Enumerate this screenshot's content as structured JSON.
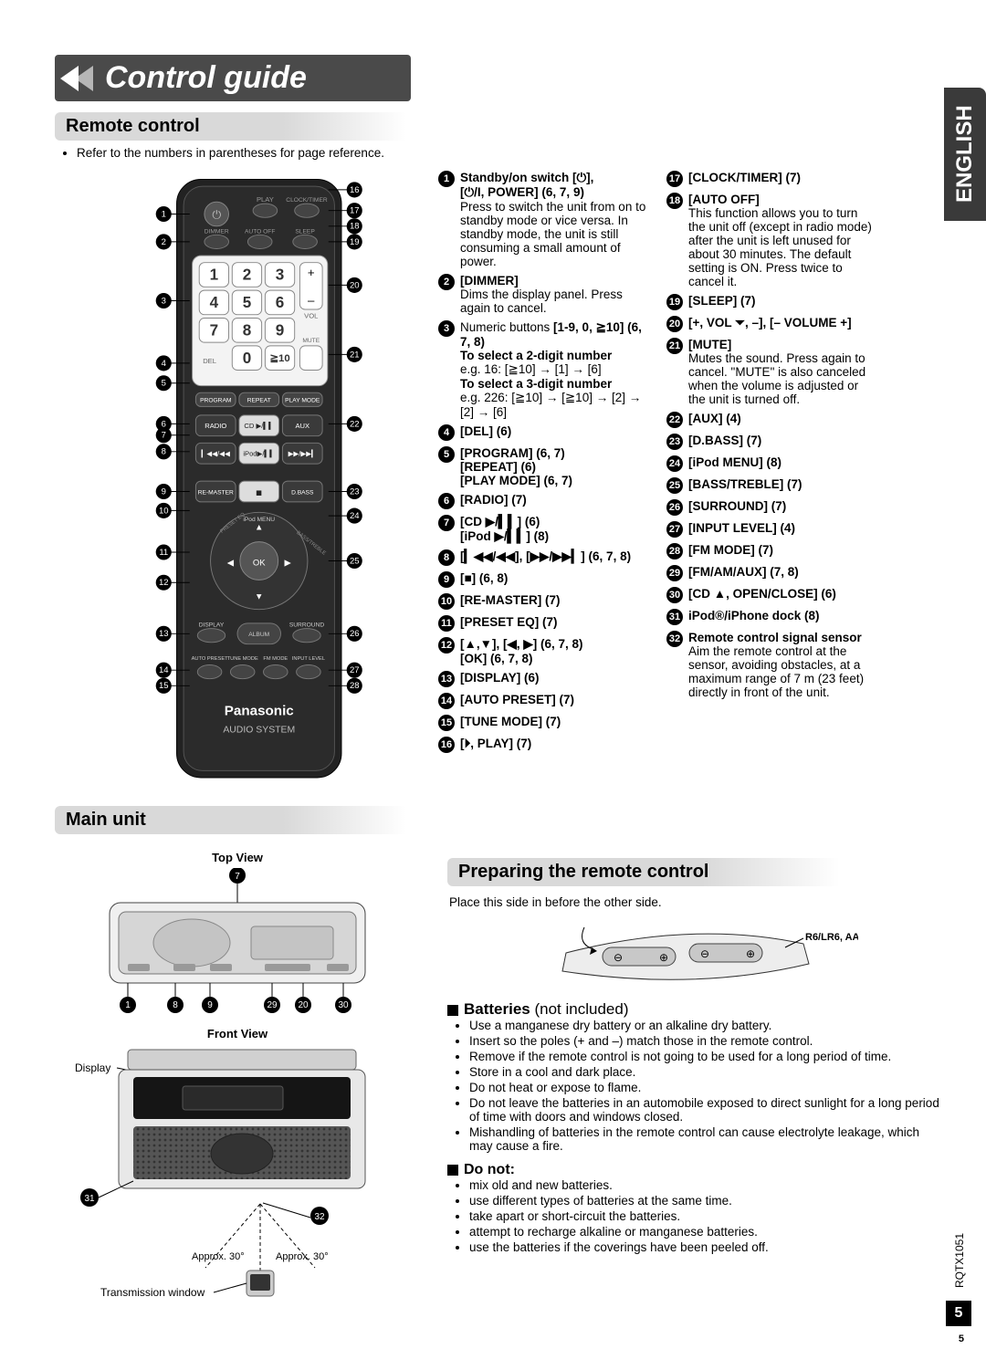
{
  "language_tab": "ENGLISH",
  "page_code": "RQTX1051",
  "page_number": "5",
  "title": "Control guide",
  "sections": {
    "remote": {
      "header": "Remote control",
      "intro": "Refer to the numbers in parentheses for page reference."
    },
    "main_unit": {
      "header": "Main unit"
    },
    "prep": {
      "header": "Preparing the remote control",
      "place": "Place this side in before the other side.",
      "battery_label": "R6/LR6, AA"
    }
  },
  "remote_image": {
    "brand": "Panasonic",
    "subtitle": "AUDIO SYSTEM",
    "face_labels": {
      "play": "PLAY",
      "clocktimer": "CLOCK/TIMER",
      "dimmer": "DIMMER",
      "autooff": "AUTO OFF",
      "sleep": "SLEEP",
      "vol": "VOL",
      "mute": "MUTE",
      "del": "DEL",
      "ge10": "≧10",
      "program": "PROGRAM",
      "repeat": "REPEAT",
      "playmode": "PLAY MODE",
      "radio": "RADIO",
      "cd": "CD ▶/▍▍",
      "aux": "AUX",
      "skipb": "▎◀◀/◀◀",
      "ipod": "iPod▶/▍▍",
      "skipf": "▶▶/▶▶▎",
      "remaster": "RE-MASTER",
      "stop": "■",
      "dbass": "D.BASS",
      "ipodmenu": "iPod MENU",
      "ok": "OK",
      "display": "DISPLAY",
      "album": "ALBUM",
      "surround": "SURROUND",
      "autopreset": "AUTO\nPRESET",
      "tunemode": "TUNE\nMODE",
      "fmmode": "FM\nMODE",
      "inputlevel": "INPUT\nLEVEL",
      "preseteq": "PRESET EQ",
      "basstreble": "BASS/TREBLE"
    }
  },
  "items_mid": [
    {
      "n": "1",
      "bold": "Standby/on switch [⏻],\n[⏻/I, POWER] (6, 7, 9)",
      "text": "Press to switch the unit from on to standby mode or vice versa. In standby mode, the unit is still consuming a small amount of power."
    },
    {
      "n": "2",
      "bold": "[DIMMER]",
      "text": "Dims the display panel. Press again to cancel."
    },
    {
      "n": "3",
      "pre": "Numeric buttons ",
      "bold": "[1-9, 0, ≧10] (6, 7, 8)",
      "extra": "To select a 2-digit number\ne.g. 16: [≧10] → [1] → [6]\nTo select a 3-digit number\ne.g. 226: [≧10] → [≧10] → [2] → [2] → [6]"
    },
    {
      "n": "4",
      "bold": "[DEL] (6)"
    },
    {
      "n": "5",
      "bold": "[PROGRAM] (6, 7)\n[REPEAT] (6)\n[PLAY MODE] (6, 7)"
    },
    {
      "n": "6",
      "bold": "[RADIO] (7)"
    },
    {
      "n": "7",
      "bold": "[CD ▶/▍▍] (6)\n[iPod ▶/▍▍] (8)"
    },
    {
      "n": "8",
      "bold": "[▎◀◀/◀◀], [▶▶/▶▶▎] (6, 7, 8)"
    },
    {
      "n": "9",
      "bold": "[■] (6, 8)"
    },
    {
      "n": "10",
      "bold": "[RE-MASTER] (7)"
    },
    {
      "n": "11",
      "bold": "[PRESET EQ] (7)"
    },
    {
      "n": "12",
      "bold": "[▲,▼], [◀, ▶] (6, 7, 8)\n[OK] (6, 7, 8)"
    },
    {
      "n": "13",
      "bold": "[DISPLAY] (6)"
    },
    {
      "n": "14",
      "bold": "[AUTO PRESET] (7)"
    },
    {
      "n": "15",
      "bold": "[TUNE MODE] (7)"
    },
    {
      "n": "16",
      "bold": "[⏵, PLAY] (7)"
    }
  ],
  "items_right": [
    {
      "n": "17",
      "bold": "[CLOCK/TIMER] (7)"
    },
    {
      "n": "18",
      "bold": "[AUTO OFF]",
      "text": "This function allows you to turn the unit off (except in radio mode) after the unit is left unused for about 30 minutes. The default setting is ON. Press twice to cancel it."
    },
    {
      "n": "19",
      "bold": "[SLEEP] (7)"
    },
    {
      "n": "20",
      "bold": "[+, VOL ⏷, –], [– VOLUME +]"
    },
    {
      "n": "21",
      "bold": "[MUTE]",
      "text": "Mutes the sound. Press again to cancel. \"MUTE\" is also canceled when the volume is adjusted or the unit is turned off."
    },
    {
      "n": "22",
      "bold": "[AUX] (4)"
    },
    {
      "n": "23",
      "bold": "[D.BASS] (7)"
    },
    {
      "n": "24",
      "bold": "[iPod MENU] (8)"
    },
    {
      "n": "25",
      "bold": "[BASS/TREBLE] (7)"
    },
    {
      "n": "26",
      "bold": "[SURROUND] (7)"
    },
    {
      "n": "27",
      "bold": "[INPUT LEVEL] (4)"
    },
    {
      "n": "28",
      "bold": "[FM MODE] (7)"
    },
    {
      "n": "29",
      "bold": "[FM/AM/AUX] (7, 8)"
    },
    {
      "n": "30",
      "bold": "[CD ▲, OPEN/CLOSE] (6)"
    },
    {
      "n": "31",
      "bold": "iPod®/iPhone dock (8)"
    },
    {
      "n": "32",
      "bold": "Remote control signal sensor",
      "text": "Aim the remote control at the sensor, avoiding obstacles, at a maximum range of 7 m (23 feet) directly in front of the unit."
    }
  ],
  "main_unit_labels": {
    "top_view": "Top View",
    "front_view": "Front View",
    "display": "Display",
    "approx_left": "Approx. 30°",
    "approx_right": "Approx. 30°",
    "tx_window": "Transmission window",
    "callouts_top": [
      "1",
      "8",
      "9",
      "29",
      "20",
      "30"
    ],
    "callout_top_single": "7"
  },
  "batteries": {
    "title": "Batteries",
    "qualifier": " (not included)",
    "bullets": [
      "Use a manganese dry battery or an alkaline dry battery.",
      "Insert so the poles (+ and –) match those in the remote control.",
      "Remove if the remote control is not going to be used for a long period of time.",
      "Store in a cool and dark place.",
      "Do not heat or expose to flame.",
      "Do not leave the batteries in an automobile exposed to direct sunlight for a long period of time with doors and windows closed.",
      "Mishandling of batteries in the remote control can cause electrolyte leakage, which may cause a fire."
    ]
  },
  "donot": {
    "title": "Do not:",
    "bullets": [
      "mix old and new batteries.",
      "use different types of batteries at the same time.",
      "take apart or short-circuit the batteries.",
      "attempt to recharge alkaline or manganese batteries.",
      "use the batteries if the coverings have been peeled off."
    ]
  }
}
